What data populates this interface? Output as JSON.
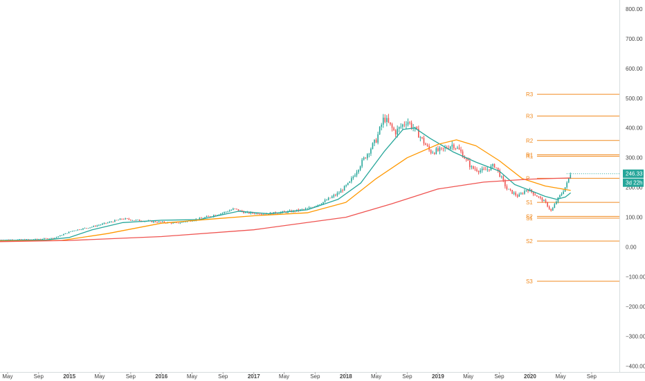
{
  "chart_data": {
    "type": "candlestick",
    "timeframe": "weekly",
    "x_range": [
      "2014-04-01",
      "2020-12-20"
    ],
    "y_range": [
      -420,
      830
    ],
    "grid": false,
    "y_ticks": [
      "800.00",
      "700.00",
      "600.00",
      "500.00",
      "400.00",
      "300.00",
      "200.00",
      "100.00",
      "0.00",
      "−100.00",
      "−200.00",
      "−300.00",
      "−400.00"
    ],
    "y_tick_values": [
      800,
      700,
      600,
      500,
      400,
      300,
      200,
      100,
      0,
      -100,
      -200,
      -300,
      -400
    ],
    "x_ticks": [
      {
        "label": "May",
        "date": "2014-05-01",
        "bold": false
      },
      {
        "label": "Sep",
        "date": "2014-09-01",
        "bold": false
      },
      {
        "label": "2015",
        "date": "2015-01-01",
        "bold": true
      },
      {
        "label": "May",
        "date": "2015-05-01",
        "bold": false
      },
      {
        "label": "Sep",
        "date": "2015-09-01",
        "bold": false
      },
      {
        "label": "2016",
        "date": "2016-01-01",
        "bold": true
      },
      {
        "label": "May",
        "date": "2016-05-01",
        "bold": false
      },
      {
        "label": "Sep",
        "date": "2016-09-01",
        "bold": false
      },
      {
        "label": "2017",
        "date": "2017-01-01",
        "bold": true
      },
      {
        "label": "May",
        "date": "2017-05-01",
        "bold": false
      },
      {
        "label": "Sep",
        "date": "2017-09-01",
        "bold": false
      },
      {
        "label": "2018",
        "date": "2018-01-01",
        "bold": true
      },
      {
        "label": "May",
        "date": "2018-05-01",
        "bold": false
      },
      {
        "label": "Sep",
        "date": "2018-09-01",
        "bold": false
      },
      {
        "label": "2019",
        "date": "2019-01-01",
        "bold": true
      },
      {
        "label": "May",
        "date": "2019-05-01",
        "bold": false
      },
      {
        "label": "Sep",
        "date": "2019-09-01",
        "bold": false
      },
      {
        "label": "2020",
        "date": "2020-01-01",
        "bold": true
      },
      {
        "label": "May",
        "date": "2020-05-01",
        "bold": false
      },
      {
        "label": "Sep",
        "date": "2020-09-01",
        "bold": false
      }
    ],
    "price_anchors": [
      [
        "2014-04-01",
        24
      ],
      [
        "2014-08-01",
        25
      ],
      [
        "2014-11-01",
        30
      ],
      [
        "2015-01-15",
        55
      ],
      [
        "2015-04-01",
        68
      ],
      [
        "2015-08-01",
        95
      ],
      [
        "2015-09-20",
        90
      ],
      [
        "2015-12-01",
        85
      ],
      [
        "2016-03-01",
        80
      ],
      [
        "2016-06-01",
        95
      ],
      [
        "2016-09-01",
        115
      ],
      [
        "2016-10-15",
        128
      ],
      [
        "2016-12-01",
        115
      ],
      [
        "2017-03-01",
        112
      ],
      [
        "2017-06-01",
        120
      ],
      [
        "2017-08-01",
        128
      ],
      [
        "2017-10-01",
        150
      ],
      [
        "2017-12-01",
        180
      ],
      [
        "2018-01-15",
        215
      ],
      [
        "2018-03-01",
        280
      ],
      [
        "2018-05-01",
        360
      ],
      [
        "2018-06-01",
        435
      ],
      [
        "2018-07-15",
        385
      ],
      [
        "2018-09-01",
        425
      ],
      [
        "2018-10-15",
        380
      ],
      [
        "2018-12-01",
        320
      ],
      [
        "2019-01-15",
        325
      ],
      [
        "2019-03-01",
        345
      ],
      [
        "2019-04-01",
        320
      ],
      [
        "2019-05-15",
        265
      ],
      [
        "2019-07-01",
        255
      ],
      [
        "2019-08-15",
        275
      ],
      [
        "2019-10-01",
        195
      ],
      [
        "2019-11-15",
        170
      ],
      [
        "2019-12-20",
        195
      ],
      [
        "2020-01-15",
        180
      ],
      [
        "2020-03-01",
        150
      ],
      [
        "2020-03-25",
        120
      ],
      [
        "2020-04-15",
        155
      ],
      [
        "2020-05-05",
        180
      ],
      [
        "2020-05-25",
        210
      ],
      [
        "2020-06-10",
        250
      ]
    ],
    "series": [
      {
        "name": "",
        "color": "#26a69a",
        "points": [
          [
            "2014-04-01",
            22
          ],
          [
            "2014-10-01",
            24
          ],
          [
            "2015-01-01",
            32
          ],
          [
            "2015-04-01",
            58
          ],
          [
            "2015-08-01",
            82
          ],
          [
            "2016-01-01",
            90
          ],
          [
            "2016-06-01",
            92
          ],
          [
            "2016-11-01",
            120
          ],
          [
            "2017-03-01",
            112
          ],
          [
            "2017-08-01",
            125
          ],
          [
            "2017-12-01",
            160
          ],
          [
            "2018-03-01",
            215
          ],
          [
            "2018-06-01",
            320
          ],
          [
            "2018-08-15",
            395
          ],
          [
            "2018-10-01",
            400
          ],
          [
            "2018-12-01",
            365
          ],
          [
            "2019-03-01",
            320
          ],
          [
            "2019-06-01",
            285
          ],
          [
            "2019-09-01",
            255
          ],
          [
            "2019-11-01",
            210
          ],
          [
            "2020-01-01",
            190
          ],
          [
            "2020-03-01",
            170
          ],
          [
            "2020-04-15",
            160
          ],
          [
            "2020-05-20",
            168
          ],
          [
            "2020-06-10",
            182
          ]
        ]
      },
      {
        "name": "",
        "color": "#ff9800",
        "points": [
          [
            "2014-04-01",
            20
          ],
          [
            "2014-12-01",
            22
          ],
          [
            "2015-06-01",
            45
          ],
          [
            "2016-01-01",
            80
          ],
          [
            "2016-08-01",
            95
          ],
          [
            "2017-01-01",
            105
          ],
          [
            "2017-08-01",
            115
          ],
          [
            "2018-01-01",
            150
          ],
          [
            "2018-05-01",
            230
          ],
          [
            "2018-09-01",
            300
          ],
          [
            "2019-01-01",
            345
          ],
          [
            "2019-03-15",
            360
          ],
          [
            "2019-06-01",
            340
          ],
          [
            "2019-09-01",
            290
          ],
          [
            "2019-12-01",
            230
          ],
          [
            "2020-03-01",
            205
          ],
          [
            "2020-06-10",
            190
          ]
        ]
      },
      {
        "name": "",
        "color": "#ef5350",
        "points": [
          [
            "2014-04-01",
            18
          ],
          [
            "2015-01-01",
            22
          ],
          [
            "2016-01-01",
            35
          ],
          [
            "2017-01-01",
            58
          ],
          [
            "2018-01-01",
            100
          ],
          [
            "2018-07-01",
            145
          ],
          [
            "2019-01-01",
            195
          ],
          [
            "2019-07-01",
            218
          ],
          [
            "2020-01-01",
            228
          ],
          [
            "2020-06-10",
            232
          ]
        ]
      }
    ],
    "pivot_levels": [
      {
        "label": "R3",
        "value": 513
      },
      {
        "label": "R3",
        "value": 440
      },
      {
        "label": "R2",
        "value": 358
      },
      {
        "label": "R1",
        "value": 310
      },
      {
        "label": "R1",
        "value": 305
      },
      {
        "label": "P",
        "value": 231
      },
      {
        "label": "S1",
        "value": 150
      },
      {
        "label": "S2",
        "value": 103
      },
      {
        "label": "S1",
        "value": 97
      },
      {
        "label": "S2",
        "value": 20
      },
      {
        "label": "S3",
        "value": -115
      }
    ],
    "pivot_start_date": "2020-01-01",
    "last_price": "246.33",
    "last_price_value": 246.33,
    "countdown": "3d 22h",
    "colors": {
      "up": "#26a69a",
      "down": "#ef5350",
      "pivot": "#f0891d",
      "axis_text": "#444444",
      "badge": "#26a69a"
    }
  }
}
